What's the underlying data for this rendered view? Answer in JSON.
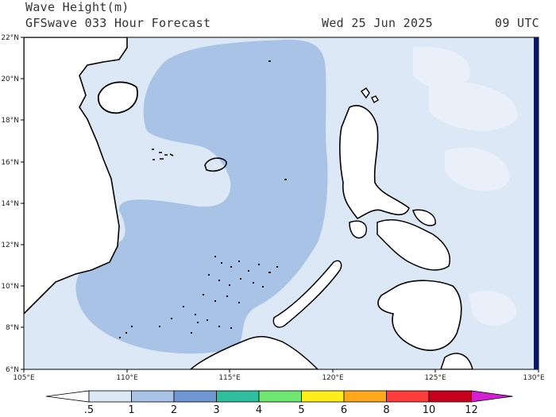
{
  "header": {
    "title": "Wave Height(m)",
    "model": "GFSwave 033 Hour Forecast",
    "date": "Wed 25 Jun 2025",
    "time": "09 UTC"
  },
  "map": {
    "lat_labels": [
      "22°N",
      "20°N",
      "18°N",
      "16°N",
      "14°N",
      "12°N",
      "10°N",
      "8°N",
      "6°N"
    ],
    "lon_labels": [
      "105°E",
      "110°E",
      "115°E",
      "120°E",
      "125°E",
      "130°E"
    ]
  },
  "colorbar": {
    "labels": [
      ".5",
      "1",
      "2",
      "3",
      "4",
      "5",
      "6",
      "8",
      "10",
      "12"
    ],
    "colors": [
      "#ffffff",
      "#dde8f7",
      "#a9c3e6",
      "#6e97d3",
      "#2fbf9f",
      "#6fe66f",
      "#ffee1a",
      "#ffa81a",
      "#ff3d3d",
      "#c8001e",
      "#d21fd2"
    ]
  },
  "legend_colors": {
    "land": "#ffffff",
    "sea_lt_half": "#e6eef9",
    "sea_half_1": "#dde8f7",
    "sea_1_2": "#a9c3e6",
    "edge": "#001a66"
  }
}
